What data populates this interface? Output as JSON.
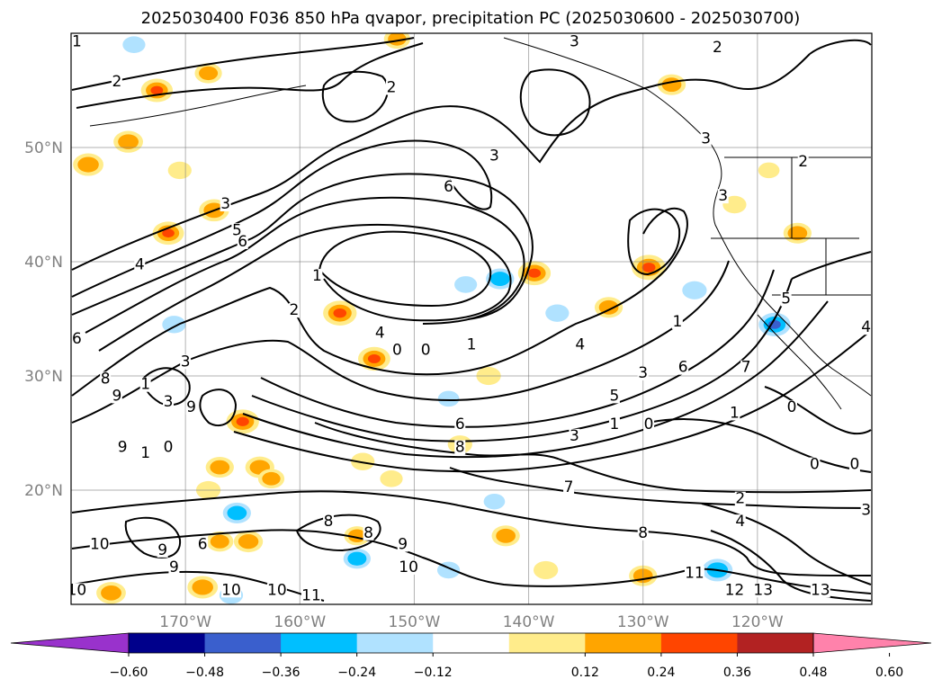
{
  "chart_data": {
    "type": "contour-map",
    "title": "2025030400 F036 850 hPa qvapor, precipitation PC (2025030600 - 2025030700)",
    "map_extent": {
      "lon": [
        -180,
        -110
      ],
      "lat": [
        10,
        60
      ]
    },
    "grid": true,
    "lat_ticks": [
      {
        "value": 20,
        "label": "20°N"
      },
      {
        "value": 30,
        "label": "30°N"
      },
      {
        "value": 40,
        "label": "40°N"
      },
      {
        "value": 50,
        "label": "50°N"
      }
    ],
    "lon_ticks": [
      {
        "value": -170,
        "label": "170°W"
      },
      {
        "value": -160,
        "label": "160°W"
      },
      {
        "value": -150,
        "label": "150°W"
      },
      {
        "value": -140,
        "label": "140°W"
      },
      {
        "value": -130,
        "label": "130°W"
      },
      {
        "value": -120,
        "label": "120°W"
      }
    ],
    "colorbar": {
      "extend": "both",
      "ticks": [
        "−0.60",
        "−0.48",
        "−0.36",
        "−0.24",
        "−0.12",
        "0.12",
        "0.24",
        "0.36",
        "0.48",
        "0.60"
      ],
      "colors": [
        "#9932cc",
        "#00008b",
        "#3a5fcd",
        "#00bfff",
        "#b0e2ff",
        "#ffffff",
        "#ffec8b",
        "#ffa500",
        "#ff4500",
        "#b22222",
        "#ff82ab"
      ]
    },
    "contour_labels": [
      {
        "lon": -179.5,
        "lat": 59.0,
        "text": "1"
      },
      {
        "lon": -176.0,
        "lat": 55.5,
        "text": "2"
      },
      {
        "lon": -152.0,
        "lat": 55.0,
        "text": "2"
      },
      {
        "lon": -136.0,
        "lat": 59.0,
        "text": "3"
      },
      {
        "lon": -123.5,
        "lat": 58.5,
        "text": "2"
      },
      {
        "lon": -124.5,
        "lat": 50.5,
        "text": "3"
      },
      {
        "lon": -116.0,
        "lat": 48.5,
        "text": "2"
      },
      {
        "lon": -143.0,
        "lat": 49.0,
        "text": "3"
      },
      {
        "lon": -147.0,
        "lat": 46.3,
        "text": "6"
      },
      {
        "lon": -166.5,
        "lat": 44.8,
        "text": "3"
      },
      {
        "lon": -165.5,
        "lat": 42.5,
        "text": "5"
      },
      {
        "lon": -165.0,
        "lat": 41.5,
        "text": "6"
      },
      {
        "lon": -174.0,
        "lat": 39.5,
        "text": "4"
      },
      {
        "lon": -158.5,
        "lat": 38.5,
        "text": "1"
      },
      {
        "lon": -160.5,
        "lat": 35.5,
        "text": "2"
      },
      {
        "lon": -153.0,
        "lat": 33.5,
        "text": "4"
      },
      {
        "lon": -135.5,
        "lat": 32.5,
        "text": "4"
      },
      {
        "lon": -179.5,
        "lat": 33.0,
        "text": "6"
      },
      {
        "lon": -177.0,
        "lat": 29.5,
        "text": "8"
      },
      {
        "lon": -176.0,
        "lat": 28.0,
        "text": "9"
      },
      {
        "lon": -173.5,
        "lat": 29.0,
        "text": "1"
      },
      {
        "lon": -170.0,
        "lat": 31.0,
        "text": "3"
      },
      {
        "lon": -171.5,
        "lat": 27.5,
        "text": "3"
      },
      {
        "lon": -169.5,
        "lat": 27.0,
        "text": "9"
      },
      {
        "lon": -175.5,
        "lat": 23.5,
        "text": "9"
      },
      {
        "lon": -173.5,
        "lat": 23.0,
        "text": "1"
      },
      {
        "lon": -171.5,
        "lat": 23.5,
        "text": "0"
      },
      {
        "lon": -151.5,
        "lat": 32.0,
        "text": "0"
      },
      {
        "lon": -149.0,
        "lat": 32.0,
        "text": "0"
      },
      {
        "lon": -145.0,
        "lat": 32.5,
        "text": "1"
      },
      {
        "lon": -130.0,
        "lat": 30.0,
        "text": "3"
      },
      {
        "lon": -132.5,
        "lat": 28.0,
        "text": "5"
      },
      {
        "lon": -126.5,
        "lat": 30.5,
        "text": "6"
      },
      {
        "lon": -121.0,
        "lat": 30.5,
        "text": "7"
      },
      {
        "lon": -127.0,
        "lat": 34.5,
        "text": "1"
      },
      {
        "lon": -117.5,
        "lat": 36.5,
        "text": "5"
      },
      {
        "lon": -122.0,
        "lat": 26.5,
        "text": "1"
      },
      {
        "lon": -117.0,
        "lat": 27.0,
        "text": "0"
      },
      {
        "lon": -132.5,
        "lat": 25.5,
        "text": "1"
      },
      {
        "lon": -129.5,
        "lat": 25.5,
        "text": "0"
      },
      {
        "lon": -136.0,
        "lat": 24.5,
        "text": "3"
      },
      {
        "lon": -146.0,
        "lat": 25.5,
        "text": "6"
      },
      {
        "lon": -146.0,
        "lat": 23.5,
        "text": "8"
      },
      {
        "lon": -136.5,
        "lat": 20.0,
        "text": "7"
      },
      {
        "lon": -121.5,
        "lat": 19.0,
        "text": "2"
      },
      {
        "lon": -121.5,
        "lat": 17.0,
        "text": "4"
      },
      {
        "lon": -130.0,
        "lat": 16.0,
        "text": "8"
      },
      {
        "lon": -154.0,
        "lat": 16.0,
        "text": "8"
      },
      {
        "lon": -157.5,
        "lat": 17.0,
        "text": "8"
      },
      {
        "lon": -151.0,
        "lat": 15.0,
        "text": "9"
      },
      {
        "lon": -150.5,
        "lat": 13.0,
        "text": "10"
      },
      {
        "lon": -177.5,
        "lat": 15.0,
        "text": "10"
      },
      {
        "lon": -172.0,
        "lat": 14.5,
        "text": "9"
      },
      {
        "lon": -171.0,
        "lat": 13.0,
        "text": "9"
      },
      {
        "lon": -168.5,
        "lat": 15.0,
        "text": "6"
      },
      {
        "lon": -166.0,
        "lat": 11.0,
        "text": "10"
      },
      {
        "lon": -162.0,
        "lat": 11.0,
        "text": "10"
      },
      {
        "lon": -159.0,
        "lat": 10.5,
        "text": "11"
      },
      {
        "lon": -179.5,
        "lat": 11.0,
        "text": "10"
      },
      {
        "lon": -125.5,
        "lat": 12.5,
        "text": "11"
      },
      {
        "lon": -122.0,
        "lat": 11.0,
        "text": "12"
      },
      {
        "lon": -119.5,
        "lat": 11.0,
        "text": "13"
      },
      {
        "lon": -114.5,
        "lat": 11.0,
        "text": "13"
      },
      {
        "lon": -110.5,
        "lat": 18.0,
        "text": "3"
      },
      {
        "lon": -115.0,
        "lat": 22.0,
        "text": "0"
      },
      {
        "lon": -111.5,
        "lat": 22.0,
        "text": "0"
      },
      {
        "lon": -110.5,
        "lat": 34.0,
        "text": "4"
      },
      {
        "lon": -123.0,
        "lat": 45.5,
        "text": "3"
      }
    ],
    "shaded_cells": [
      {
        "lon": -172.5,
        "lat": 55.0,
        "v": 0.38
      },
      {
        "lon": -178.5,
        "lat": 48.5,
        "v": 0.35
      },
      {
        "lon": -175.0,
        "lat": 50.5,
        "v": 0.33
      },
      {
        "lon": -168.0,
        "lat": 56.5,
        "v": 0.28
      },
      {
        "lon": -151.5,
        "lat": 59.5,
        "v": 0.26
      },
      {
        "lon": -127.5,
        "lat": 55.5,
        "v": 0.3
      },
      {
        "lon": -119.0,
        "lat": 48.0,
        "v": 0.15
      },
      {
        "lon": -170.5,
        "lat": 48.0,
        "v": 0.2
      },
      {
        "lon": -171.5,
        "lat": 42.5,
        "v": 0.37
      },
      {
        "lon": -167.5,
        "lat": 44.5,
        "v": 0.34
      },
      {
        "lon": -156.5,
        "lat": 35.5,
        "v": 0.42
      },
      {
        "lon": -153.5,
        "lat": 31.5,
        "v": 0.39
      },
      {
        "lon": -139.5,
        "lat": 39.0,
        "v": 0.4
      },
      {
        "lon": -129.5,
        "lat": 39.5,
        "v": 0.43
      },
      {
        "lon": -133.0,
        "lat": 36.0,
        "v": 0.3
      },
      {
        "lon": -116.5,
        "lat": 42.5,
        "v": 0.3
      },
      {
        "lon": -122.0,
        "lat": 45.0,
        "v": 0.2
      },
      {
        "lon": -142.5,
        "lat": 38.5,
        "v": -0.3
      },
      {
        "lon": -118.5,
        "lat": 34.5,
        "v": -0.38
      },
      {
        "lon": -125.5,
        "lat": 37.5,
        "v": -0.22
      },
      {
        "lon": -171.0,
        "lat": 34.5,
        "v": -0.2
      },
      {
        "lon": -165.0,
        "lat": 26.0,
        "v": 0.4
      },
      {
        "lon": -163.5,
        "lat": 22.0,
        "v": 0.32
      },
      {
        "lon": -167.0,
        "lat": 22.0,
        "v": 0.3
      },
      {
        "lon": -162.5,
        "lat": 21.0,
        "v": 0.26
      },
      {
        "lon": -143.5,
        "lat": 30.0,
        "v": 0.22
      },
      {
        "lon": -146.0,
        "lat": 24.0,
        "v": 0.22
      },
      {
        "lon": -154.5,
        "lat": 22.5,
        "v": 0.2
      },
      {
        "lon": -152.0,
        "lat": 21.0,
        "v": 0.18
      },
      {
        "lon": -168.0,
        "lat": 20.0,
        "v": 0.22
      },
      {
        "lon": -165.5,
        "lat": 18.0,
        "v": -0.3
      },
      {
        "lon": -164.5,
        "lat": 15.5,
        "v": 0.32
      },
      {
        "lon": -167.0,
        "lat": 15.5,
        "v": 0.28
      },
      {
        "lon": -142.0,
        "lat": 16.0,
        "v": 0.3
      },
      {
        "lon": -155.0,
        "lat": 16.0,
        "v": 0.25
      },
      {
        "lon": -155.0,
        "lat": 14.0,
        "v": -0.28
      },
      {
        "lon": -147.0,
        "lat": 13.0,
        "v": -0.18
      },
      {
        "lon": -138.5,
        "lat": 13.0,
        "v": 0.22
      },
      {
        "lon": -130.0,
        "lat": 12.5,
        "v": 0.3
      },
      {
        "lon": -176.5,
        "lat": 11.0,
        "v": 0.33
      },
      {
        "lon": -168.5,
        "lat": 11.5,
        "v": 0.35
      },
      {
        "lon": -166.0,
        "lat": 10.8,
        "v": -0.2
      },
      {
        "lon": -123.5,
        "lat": 13.0,
        "v": -0.35
      },
      {
        "lon": -143.0,
        "lat": 19.0,
        "v": -0.15
      },
      {
        "lon": -147.0,
        "lat": 28.0,
        "v": -0.15
      },
      {
        "lon": -145.5,
        "lat": 38.0,
        "v": -0.18
      },
      {
        "lon": -137.5,
        "lat": 35.5,
        "v": -0.2
      },
      {
        "lon": -174.5,
        "lat": 59.0,
        "v": -0.18
      }
    ]
  }
}
